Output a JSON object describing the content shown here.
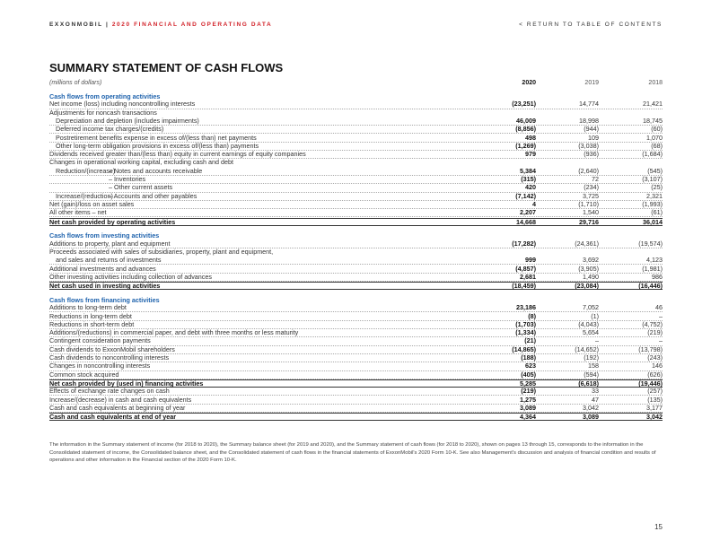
{
  "header": {
    "brand": "EXXONMOBIL",
    "separator": "|",
    "report": "2020 FINANCIAL AND OPERATING DATA",
    "link": "< RETURN TO TABLE OF CONTENTS"
  },
  "title": "SUMMARY STATEMENT OF CASH FLOWS",
  "table": {
    "units": "(millions of dollars)",
    "columns": [
      "2020",
      "2019",
      "2018"
    ],
    "sections": [
      {
        "heading": "Cash flows from operating activities",
        "rows": [
          {
            "label": "Net income (loss) including noncontrolling interests",
            "values": [
              "(23,251)",
              "14,774",
              "21,421"
            ]
          },
          {
            "label": "Adjustments for noncash transactions"
          },
          {
            "label": "Depreciation and depletion (includes impairments)",
            "indent": true,
            "values": [
              "46,009",
              "18,998",
              "18,745"
            ]
          },
          {
            "label": "Deferred income tax charges/(credits)",
            "indent": true,
            "values": [
              "(8,856)",
              "(944)",
              "(60)"
            ]
          },
          {
            "label": "Postretirement benefits expense in excess of/(less than) net payments",
            "indent": true,
            "values": [
              "498",
              "109",
              "1,070"
            ]
          },
          {
            "label": "Other long-term obligation provisions in excess of/(less than) payments",
            "indent": true,
            "values": [
              "(1,269)",
              "(3,038)",
              "(68)"
            ]
          },
          {
            "label": "Dividends received greater than/(less than) equity in current earnings of equity companies",
            "values": [
              "979",
              "(936)",
              "(1,684)"
            ]
          },
          {
            "label": "Changes in operational working capital, excluding cash and debt"
          },
          {
            "label": "Reduction/(increase)",
            "indent": true,
            "item": "– Notes and accounts receivable",
            "values": [
              "5,384",
              "(2,640)",
              "(545)"
            ]
          },
          {
            "item": "– Inventories",
            "values": [
              "(315)",
              "72",
              "(3,107)"
            ]
          },
          {
            "item": "– Other current assets",
            "values": [
              "420",
              "(234)",
              "(25)"
            ]
          },
          {
            "label": "Increase/(reduction)",
            "indent": true,
            "item": "– Accounts and other payables",
            "values": [
              "(7,142)",
              "3,725",
              "2,321"
            ]
          },
          {
            "label": "Net (gain)/loss on asset sales",
            "values": [
              "4",
              "(1,710)",
              "(1,993)"
            ]
          },
          {
            "label": "All other items – net",
            "values": [
              "2,207",
              "1,540",
              "(61)"
            ]
          },
          {
            "label": "Net cash provided by operating activities",
            "total": true,
            "values": [
              "14,668",
              "29,716",
              "36,014"
            ]
          }
        ]
      },
      {
        "heading": "Cash flows from investing activities",
        "rows": [
          {
            "label": "Additions to property, plant and equipment",
            "values": [
              "(17,282)",
              "(24,361)",
              "(19,574)"
            ]
          },
          {
            "label": "Proceeds associated with sales of subsidiaries, property, plant and equipment,"
          },
          {
            "label": "and sales and returns of investments",
            "indent": true,
            "values": [
              "999",
              "3,692",
              "4,123"
            ]
          },
          {
            "label": "Additional investments and advances",
            "values": [
              "(4,857)",
              "(3,905)",
              "(1,981)"
            ]
          },
          {
            "label": "Other investing activities including collection of advances",
            "values": [
              "2,681",
              "1,490",
              "986"
            ]
          },
          {
            "label": "Net cash used in investing activities",
            "total": true,
            "values": [
              "(18,459)",
              "(23,084)",
              "(16,446)"
            ]
          }
        ]
      },
      {
        "heading": "Cash flows from financing activities",
        "rows": [
          {
            "label": "Additions to long-term debt",
            "values": [
              "23,186",
              "7,052",
              "46"
            ]
          },
          {
            "label": "Reductions in long-term debt",
            "values": [
              "(8)",
              "(1)",
              "–"
            ]
          },
          {
            "label": "Reductions in short-term debt",
            "values": [
              "(1,703)",
              "(4,043)",
              "(4,752)"
            ]
          },
          {
            "label": "Additions/(reductions) in commercial paper, and debt with three months or less maturity",
            "values": [
              "(1,334)",
              "5,654",
              "(219)"
            ]
          },
          {
            "label": "Contingent consideration payments",
            "values": [
              "(21)",
              "–",
              "–"
            ]
          },
          {
            "label": "Cash dividends to ExxonMobil shareholders",
            "values": [
              "(14,865)",
              "(14,652)",
              "(13,798)"
            ]
          },
          {
            "label": "Cash dividends to noncontrolling interests",
            "values": [
              "(188)",
              "(192)",
              "(243)"
            ]
          },
          {
            "label": "Changes in noncontrolling interests",
            "values": [
              "623",
              "158",
              "146"
            ]
          },
          {
            "label": "Common stock acquired",
            "values": [
              "(405)",
              "(594)",
              "(626)"
            ]
          },
          {
            "label": "Net cash provided by (used in) financing activities",
            "total": true,
            "values": [
              "5,285",
              "(6,618)",
              "(19,446)"
            ]
          },
          {
            "label": "Effects of exchange rate changes on cash",
            "values": [
              "(219)",
              "33",
              "(257)"
            ]
          },
          {
            "label": "Increase/(decrease) in cash and cash equivalents",
            "values": [
              "1,275",
              "47",
              "(135)"
            ]
          },
          {
            "label": "Cash and cash equivalents at beginning of year",
            "values": [
              "3,089",
              "3,042",
              "3,177"
            ]
          },
          {
            "label": "Cash and cash equivalents at end of year",
            "total": true,
            "values": [
              "4,364",
              "3,089",
              "3,042"
            ]
          }
        ]
      }
    ]
  },
  "footnote": "The information in the Summary statement of income (for 2018 to 2020), the Summary balance sheet (for 2019 and 2020), and the Summary statement of cash flows (for 2018 to 2020), shown on pages 13 through 15, corresponds to the information in the Consolidated statement of income, the Consolidated balance sheet, and the Consolidated statement of cash flows in the financial statements of ExxonMobil's 2020 Form 10-K. See also Management's discussion and analysis of financial condition and results of operations and other information in the Financial section of the 2020 Form 10-K.",
  "page_number": "15"
}
